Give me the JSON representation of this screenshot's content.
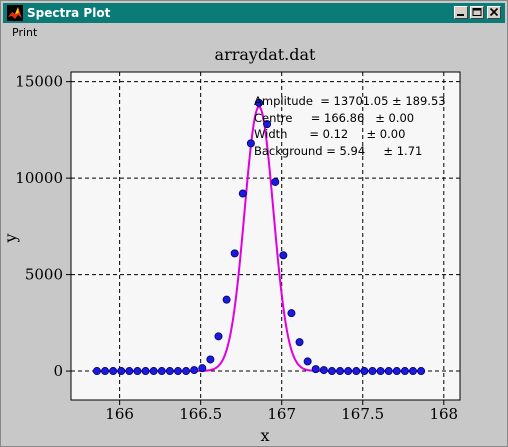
{
  "window": {
    "title": "Spectra Plot",
    "icon": "matlab-logo-icon",
    "controls": [
      "minimize-icon",
      "maximize-icon",
      "close-icon"
    ]
  },
  "menu": {
    "items": [
      "Print"
    ]
  },
  "chart_data": {
    "type": "scatter",
    "title": "arraydat.dat",
    "xlabel": "x",
    "ylabel": "y",
    "xlim": [
      165.7,
      168.1
    ],
    "ylim": [
      -1500,
      15500
    ],
    "xticks": [
      166,
      166.5,
      167,
      167.5,
      168
    ],
    "xtick_labels": [
      "166",
      "166.5",
      "167",
      "167.5",
      "168"
    ],
    "yticks": [
      0,
      5000,
      10000,
      15000
    ],
    "ytick_labels": [
      "0",
      "5000",
      "10000",
      "15000"
    ],
    "grid": true,
    "series": [
      {
        "kind": "points",
        "color": "#1a1ae0",
        "x": [
          165.86,
          165.91,
          165.96,
          166.01,
          166.06,
          166.11,
          166.16,
          166.21,
          166.26,
          166.31,
          166.36,
          166.41,
          166.46,
          166.51,
          166.56,
          166.61,
          166.66,
          166.71,
          166.76,
          166.81,
          166.86,
          166.91,
          166.96,
          167.01,
          167.06,
          167.11,
          167.16,
          167.21,
          167.26,
          167.31,
          167.36,
          167.41,
          167.46,
          167.51,
          167.56,
          167.61,
          167.66,
          167.71,
          167.76,
          167.81,
          167.86
        ],
        "y": [
          0,
          0,
          0,
          0,
          0,
          0,
          0,
          0,
          0,
          0,
          0,
          0,
          50,
          150,
          600,
          1800,
          3700,
          6100,
          9200,
          11800,
          13900,
          12800,
          9800,
          6000,
          3000,
          1500,
          500,
          100,
          50,
          0,
          0,
          0,
          0,
          0,
          0,
          0,
          0,
          0,
          0,
          0,
          0
        ]
      },
      {
        "kind": "fit-line",
        "color": "#e000e0",
        "model": "gaussian",
        "amplitude": 13701.05,
        "centre": 166.86,
        "width": 0.12,
        "background": 5.94,
        "x_range": [
          165.86,
          167.86
        ]
      }
    ],
    "annotations": [
      "Amplitude  = 13701.05 ± 189.53",
      "Centre     = 166.86   ± 0.00",
      "Width      = 0.12     ± 0.00",
      "Background = 5.94     ± 1.71"
    ]
  }
}
